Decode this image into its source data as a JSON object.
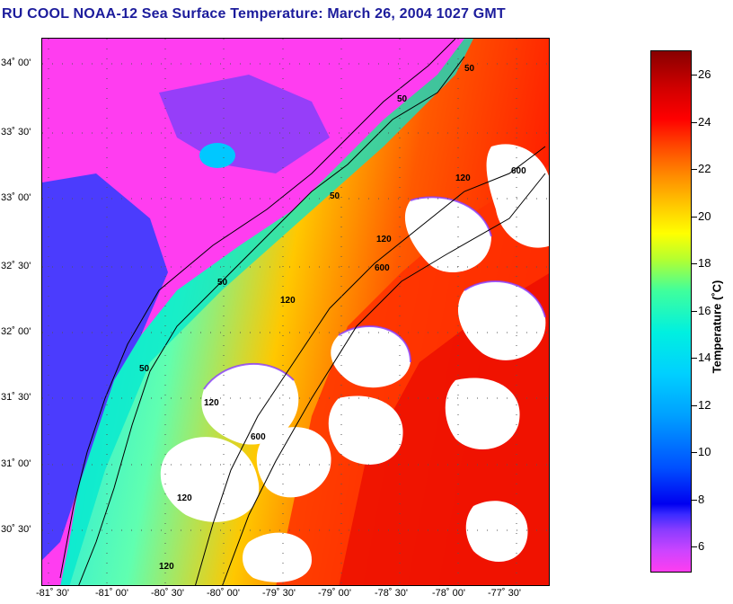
{
  "title": "RU COOL  NOAA-12  Sea Surface Temperature:  March 26, 2004 1027 GMT",
  "latitude_labels": [
    "34˚ 00'",
    "33˚ 30'",
    "33˚ 00'",
    "32˚ 30'",
    "32˚ 00'",
    "31˚ 30'",
    "31˚ 00'",
    "30˚ 30'"
  ],
  "longitude_labels": [
    "-81˚ 30'",
    "-81˚ 00'",
    "-80˚ 30'",
    "-80˚ 00'",
    "-79˚ 30'",
    "-79˚ 00'",
    "-78˚ 30'",
    "-78˚ 00'",
    "-77˚ 30'"
  ],
  "isobaths": [
    "50",
    "120",
    "600"
  ],
  "colorbar": {
    "title": "Temperature (˚C)",
    "range": [
      5,
      27
    ],
    "tick_values": [
      "6",
      "8",
      "10",
      "12",
      "14",
      "16",
      "18",
      "20",
      "22",
      "24",
      "26"
    ]
  },
  "colors": {
    "title": "#1c1c9c",
    "land": "#ff3df0",
    "cold": "#0000f0",
    "warm": "#ff0000",
    "cloud": "#ffffff"
  }
}
